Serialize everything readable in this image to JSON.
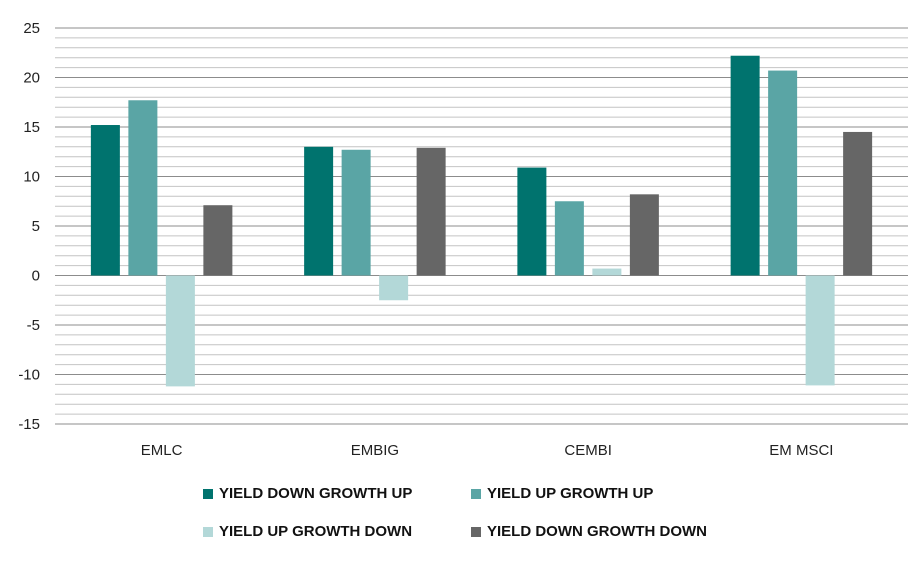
{
  "chart_data": {
    "type": "bar",
    "categories": [
      "EMLC",
      "EMBIG",
      "CEMBI",
      "EM MSCI"
    ],
    "series": [
      {
        "name": "YIELD DOWN GROWTH UP",
        "color": "#00736e",
        "values": [
          15.2,
          13.0,
          10.9,
          22.2
        ]
      },
      {
        "name": "YIELD UP GROWTH UP",
        "color": "#5aa5a5",
        "values": [
          17.7,
          12.7,
          7.5,
          20.7
        ]
      },
      {
        "name": "YIELD UP GROWTH DOWN",
        "color": "#b3d8d8",
        "values": [
          -11.2,
          -2.5,
          0.7,
          -11.1
        ]
      },
      {
        "name": "YIELD DOWN GROWTH DOWN",
        "color": "#666666",
        "values": [
          7.1,
          12.9,
          8.2,
          14.5
        ]
      }
    ],
    "ylim": [
      -15,
      25
    ],
    "yticks": [
      25,
      20,
      15,
      10,
      5,
      0,
      -5,
      -10,
      -15
    ],
    "minor_grid_step": 1,
    "grid": true,
    "legend_position": "bottom"
  }
}
